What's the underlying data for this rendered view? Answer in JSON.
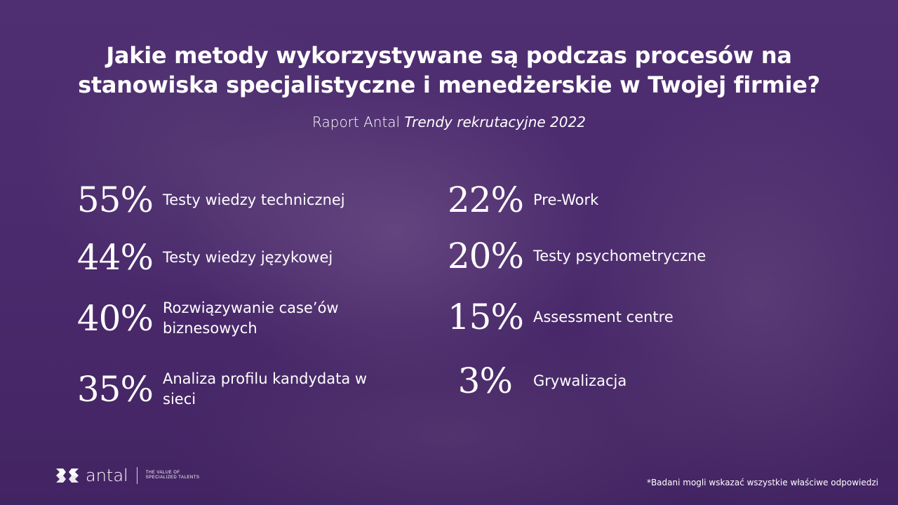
{
  "title_line1": "Jakie metody wykorzystywane są podczas procesów na",
  "title_line2": "stanowiska specjalistyczne i menedżerskie w Twojej firmie?",
  "subtitle_plain": "Raport Antal ",
  "subtitle_italic": "Trendy rekrutacyjne 2022",
  "left": [
    {
      "value": "55%",
      "label": "Testy wiedzy technicznej"
    },
    {
      "value": "44%",
      "label": "Testy wiedzy językowej"
    },
    {
      "value": "40%",
      "label": "Rozwiązywanie case’ów biznesowych"
    },
    {
      "value": "35%",
      "label": "Analiza profilu kandydata w sieci"
    }
  ],
  "right": [
    {
      "value": "22%",
      "label": "Pre-Work"
    },
    {
      "value": "20%",
      "label": "Testy psychometryczne"
    },
    {
      "value": "15%",
      "label": "Assessment centre"
    },
    {
      "value": "3%",
      "label": "Grywalizacja"
    }
  ],
  "logo": {
    "word": "antal",
    "tagline1": "THE VALUE OF",
    "tagline2": "SPECIALIZED TALENTS"
  },
  "footnote": "*Badani mogli wskazać wszystkie właściwe odpowiedzi",
  "colors": {
    "background": "#4a2a6c",
    "text": "#ffffff"
  }
}
